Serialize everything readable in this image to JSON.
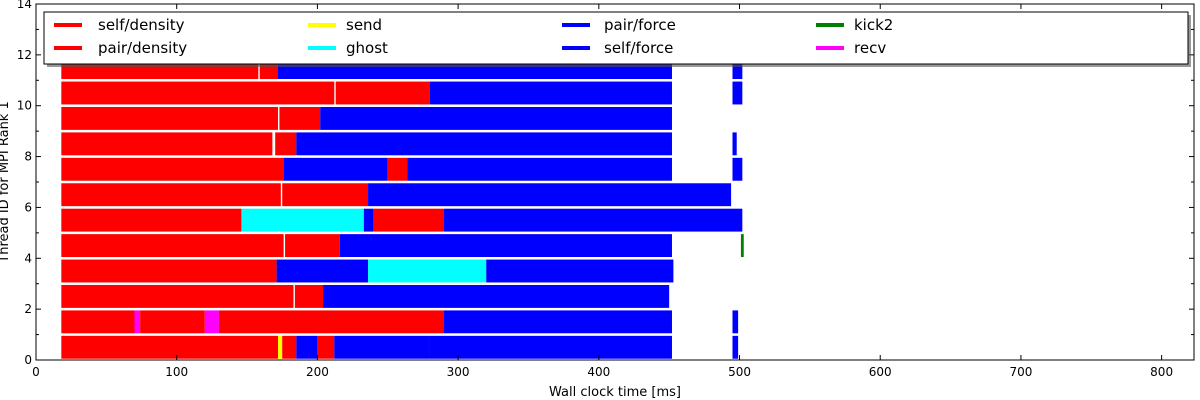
{
  "chart_data": {
    "type": "task-timeline",
    "xlabel": "Wall clock time [ms]",
    "ylabel": "Thread ID for MPI Rank 1",
    "xlim": [
      0,
      823
    ],
    "ylim": [
      0,
      14
    ],
    "x_ticks": [
      "0",
      "100",
      "200",
      "300",
      "400",
      "500",
      "600",
      "700",
      "800"
    ],
    "y_ticks": [
      "0",
      "2",
      "4",
      "6",
      "8",
      "10",
      "12",
      "14"
    ],
    "legend_position": "top",
    "legend": [
      {
        "label": "self/density",
        "color": "#ff0000"
      },
      {
        "label": "pair/density",
        "color": "#ff0000"
      },
      {
        "label": "send",
        "color": "#ffff00"
      },
      {
        "label": "ghost",
        "color": "#00ffff"
      },
      {
        "label": "pair/force",
        "color": "#0000ff"
      },
      {
        "label": "self/force",
        "color": "#0000ff"
      },
      {
        "label": "kick2",
        "color": "#008000"
      },
      {
        "label": "recv",
        "color": "#ff00ff"
      }
    ],
    "threads": [
      {
        "id": 0,
        "segments": [
          {
            "task": "pair/density",
            "start": 18,
            "end": 172
          },
          {
            "task": "send",
            "start": 172,
            "end": 175
          },
          {
            "task": "self/density",
            "start": 175,
            "end": 185
          },
          {
            "task": "pair/force",
            "start": 185,
            "end": 200
          },
          {
            "task": "pair/density",
            "start": 200,
            "end": 212
          },
          {
            "task": "pair/force",
            "start": 212,
            "end": 280
          },
          {
            "task": "pair/force",
            "start": 280,
            "end": 452
          },
          {
            "task": "self/force",
            "start": 495,
            "end": 499
          }
        ]
      },
      {
        "id": 1,
        "segments": [
          {
            "task": "self/density",
            "start": 18,
            "end": 70
          },
          {
            "task": "recv",
            "start": 70,
            "end": 74
          },
          {
            "task": "self/density",
            "start": 74,
            "end": 120
          },
          {
            "task": "recv",
            "start": 120,
            "end": 130
          },
          {
            "task": "pair/density",
            "start": 130,
            "end": 290
          },
          {
            "task": "pair/force",
            "start": 290,
            "end": 452
          },
          {
            "task": "self/force",
            "start": 495,
            "end": 499
          }
        ]
      },
      {
        "id": 2,
        "segments": [
          {
            "task": "pair/density",
            "start": 18,
            "end": 183
          },
          {
            "task": "pair/density",
            "start": 184,
            "end": 204
          },
          {
            "task": "pair/force",
            "start": 204,
            "end": 450
          }
        ]
      },
      {
        "id": 3,
        "segments": [
          {
            "task": "self/density",
            "start": 18,
            "end": 171
          },
          {
            "task": "pair/force",
            "start": 171,
            "end": 236
          },
          {
            "task": "ghost",
            "start": 236,
            "end": 320
          },
          {
            "task": "pair/force",
            "start": 320,
            "end": 453
          }
        ]
      },
      {
        "id": 4,
        "segments": [
          {
            "task": "self/density",
            "start": 18,
            "end": 176
          },
          {
            "task": "pair/density",
            "start": 177,
            "end": 216
          },
          {
            "task": "pair/force",
            "start": 216,
            "end": 452
          },
          {
            "task": "kick2",
            "start": 501,
            "end": 503
          }
        ]
      },
      {
        "id": 5,
        "segments": [
          {
            "task": "pair/density",
            "start": 18,
            "end": 146
          },
          {
            "task": "ghost",
            "start": 146,
            "end": 233
          },
          {
            "task": "pair/force",
            "start": 233,
            "end": 240
          },
          {
            "task": "pair/density",
            "start": 240,
            "end": 290
          },
          {
            "task": "pair/force",
            "start": 290,
            "end": 502
          }
        ]
      },
      {
        "id": 6,
        "segments": [
          {
            "task": "self/density",
            "start": 18,
            "end": 174
          },
          {
            "task": "pair/density",
            "start": 175,
            "end": 236
          },
          {
            "task": "pair/force",
            "start": 236,
            "end": 494
          }
        ]
      },
      {
        "id": 7,
        "segments": [
          {
            "task": "pair/density",
            "start": 18,
            "end": 176
          },
          {
            "task": "pair/force",
            "start": 176,
            "end": 250
          },
          {
            "task": "pair/density",
            "start": 250,
            "end": 264
          },
          {
            "task": "pair/force",
            "start": 264,
            "end": 452
          },
          {
            "task": "self/force",
            "start": 495,
            "end": 502
          }
        ]
      },
      {
        "id": 8,
        "segments": [
          {
            "task": "self/density",
            "start": 18,
            "end": 168
          },
          {
            "task": "pair/density",
            "start": 170,
            "end": 185
          },
          {
            "task": "pair/force",
            "start": 185,
            "end": 452
          },
          {
            "task": "self/force",
            "start": 495,
            "end": 498
          }
        ]
      },
      {
        "id": 9,
        "segments": [
          {
            "task": "pair/density",
            "start": 18,
            "end": 172
          },
          {
            "task": "pair/density",
            "start": 173,
            "end": 202
          },
          {
            "task": "pair/force",
            "start": 202,
            "end": 452
          }
        ]
      },
      {
        "id": 10,
        "segments": [
          {
            "task": "self/density",
            "start": 18,
            "end": 212
          },
          {
            "task": "pair/density",
            "start": 213,
            "end": 280
          },
          {
            "task": "pair/force",
            "start": 280,
            "end": 452
          },
          {
            "task": "self/force",
            "start": 495,
            "end": 502
          }
        ]
      },
      {
        "id": 11,
        "segments": [
          {
            "task": "pair/density",
            "start": 18,
            "end": 158
          },
          {
            "task": "pair/density",
            "start": 159,
            "end": 172
          },
          {
            "task": "pair/force",
            "start": 172,
            "end": 452
          },
          {
            "task": "self/force",
            "start": 495,
            "end": 502
          }
        ]
      }
    ]
  }
}
